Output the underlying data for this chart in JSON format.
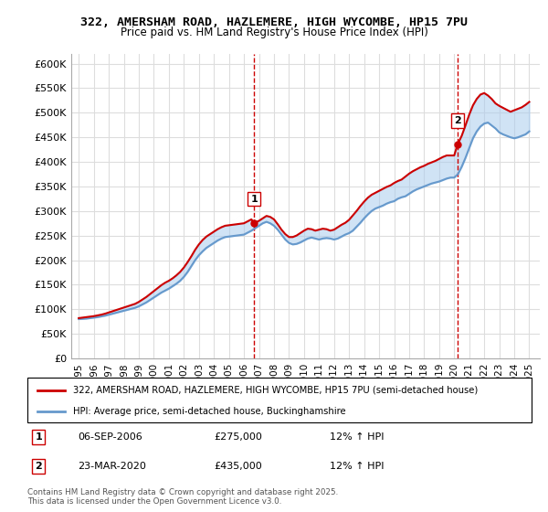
{
  "title": "322, AMERSHAM ROAD, HAZLEMERE, HIGH WYCOMBE, HP15 7PU",
  "subtitle": "Price paid vs. HM Land Registry's House Price Index (HPI)",
  "legend_line1": "322, AMERSHAM ROAD, HAZLEMERE, HIGH WYCOMBE, HP15 7PU (semi-detached house)",
  "legend_line2": "HPI: Average price, semi-detached house, Buckinghamshire",
  "footnote": "Contains HM Land Registry data © Crown copyright and database right 2025.\nThis data is licensed under the Open Government Licence v3.0.",
  "annotation1": {
    "label": "1",
    "date": "06-SEP-2006",
    "price": "£275,000",
    "hpi": "12% ↑ HPI"
  },
  "annotation2": {
    "label": "2",
    "date": "23-MAR-2020",
    "price": "£435,000",
    "hpi": "12% ↑ HPI"
  },
  "ylim": [
    0,
    620000
  ],
  "yticks": [
    0,
    50000,
    100000,
    150000,
    200000,
    250000,
    300000,
    350000,
    400000,
    450000,
    500000,
    550000,
    600000
  ],
  "xlim_start": 1994.5,
  "xlim_end": 2025.7,
  "red_color": "#cc0000",
  "blue_color": "#6699cc",
  "blue_fill": "#aaccee",
  "grid_color": "#dddddd",
  "sale1_x": 2006.67,
  "sale1_y": 275000,
  "sale2_x": 2020.22,
  "sale2_y": 435000,
  "hpi_years": [
    1995.0,
    1995.25,
    1995.5,
    1995.75,
    1996.0,
    1996.25,
    1996.5,
    1996.75,
    1997.0,
    1997.25,
    1997.5,
    1997.75,
    1998.0,
    1998.25,
    1998.5,
    1998.75,
    1999.0,
    1999.25,
    1999.5,
    1999.75,
    2000.0,
    2000.25,
    2000.5,
    2000.75,
    2001.0,
    2001.25,
    2001.5,
    2001.75,
    2002.0,
    2002.25,
    2002.5,
    2002.75,
    2003.0,
    2003.25,
    2003.5,
    2003.75,
    2004.0,
    2004.25,
    2004.5,
    2004.75,
    2005.0,
    2005.25,
    2005.5,
    2005.75,
    2006.0,
    2006.25,
    2006.5,
    2006.75,
    2007.0,
    2007.25,
    2007.5,
    2007.75,
    2008.0,
    2008.25,
    2008.5,
    2008.75,
    2009.0,
    2009.25,
    2009.5,
    2009.75,
    2010.0,
    2010.25,
    2010.5,
    2010.75,
    2011.0,
    2011.25,
    2011.5,
    2011.75,
    2012.0,
    2012.25,
    2012.5,
    2012.75,
    2013.0,
    2013.25,
    2013.5,
    2013.75,
    2014.0,
    2014.25,
    2014.5,
    2014.75,
    2015.0,
    2015.25,
    2015.5,
    2015.75,
    2016.0,
    2016.25,
    2016.5,
    2016.75,
    2017.0,
    2017.25,
    2017.5,
    2017.75,
    2018.0,
    2018.25,
    2018.5,
    2018.75,
    2019.0,
    2019.25,
    2019.5,
    2019.75,
    2020.0,
    2020.25,
    2020.5,
    2020.75,
    2021.0,
    2021.25,
    2021.5,
    2021.75,
    2022.0,
    2022.25,
    2022.5,
    2022.75,
    2023.0,
    2023.25,
    2023.5,
    2023.75,
    2024.0,
    2024.25,
    2024.5,
    2024.75,
    2025.0
  ],
  "hpi_values": [
    80000,
    80500,
    81000,
    82000,
    83000,
    84000,
    85500,
    87000,
    89000,
    91000,
    93000,
    95000,
    97000,
    99000,
    101000,
    103000,
    106000,
    110000,
    114000,
    119000,
    124000,
    129000,
    134000,
    138000,
    142000,
    147000,
    152000,
    158000,
    166000,
    176000,
    188000,
    200000,
    210000,
    218000,
    225000,
    230000,
    235000,
    240000,
    244000,
    247000,
    248000,
    249000,
    250000,
    251000,
    252000,
    256000,
    260000,
    265000,
    270000,
    275000,
    278000,
    275000,
    270000,
    262000,
    252000,
    242000,
    235000,
    232000,
    233000,
    236000,
    240000,
    244000,
    246000,
    244000,
    242000,
    244000,
    245000,
    244000,
    242000,
    244000,
    248000,
    252000,
    255000,
    260000,
    268000,
    276000,
    285000,
    293000,
    300000,
    305000,
    308000,
    311000,
    315000,
    318000,
    320000,
    325000,
    328000,
    330000,
    335000,
    340000,
    344000,
    347000,
    350000,
    353000,
    356000,
    358000,
    360000,
    363000,
    366000,
    368000,
    368000,
    375000,
    390000,
    408000,
    428000,
    448000,
    462000,
    472000,
    478000,
    480000,
    474000,
    468000,
    460000,
    456000,
    453000,
    450000,
    448000,
    450000,
    453000,
    456000,
    462000
  ],
  "red_years": [
    1995.0,
    1995.25,
    1995.5,
    1995.75,
    1996.0,
    1996.25,
    1996.5,
    1996.75,
    1997.0,
    1997.25,
    1997.5,
    1997.75,
    1998.0,
    1998.25,
    1998.5,
    1998.75,
    1999.0,
    1999.25,
    1999.5,
    1999.75,
    2000.0,
    2000.25,
    2000.5,
    2000.75,
    2001.0,
    2001.25,
    2001.5,
    2001.75,
    2002.0,
    2002.25,
    2002.5,
    2002.75,
    2003.0,
    2003.25,
    2003.5,
    2003.75,
    2004.0,
    2004.25,
    2004.5,
    2004.75,
    2005.0,
    2005.25,
    2005.5,
    2005.75,
    2006.0,
    2006.25,
    2006.5,
    2006.67,
    2007.0,
    2007.25,
    2007.5,
    2007.75,
    2008.0,
    2008.25,
    2008.5,
    2008.75,
    2009.0,
    2009.25,
    2009.5,
    2009.75,
    2010.0,
    2010.25,
    2010.5,
    2010.75,
    2011.0,
    2011.25,
    2011.5,
    2011.75,
    2012.0,
    2012.25,
    2012.5,
    2012.75,
    2013.0,
    2013.25,
    2013.5,
    2013.75,
    2014.0,
    2014.25,
    2014.5,
    2014.75,
    2015.0,
    2015.25,
    2015.5,
    2015.75,
    2016.0,
    2016.25,
    2016.5,
    2016.75,
    2017.0,
    2017.25,
    2017.5,
    2017.75,
    2018.0,
    2018.25,
    2018.5,
    2018.75,
    2019.0,
    2019.25,
    2019.5,
    2019.75,
    2020.0,
    2020.22,
    2020.5,
    2020.75,
    2021.0,
    2021.25,
    2021.5,
    2021.75,
    2022.0,
    2022.25,
    2022.5,
    2022.75,
    2023.0,
    2023.25,
    2023.5,
    2023.75,
    2024.0,
    2024.25,
    2024.5,
    2024.75,
    2025.0
  ],
  "red_values": [
    82000,
    83000,
    84000,
    85000,
    86000,
    87500,
    89000,
    91000,
    93500,
    96000,
    98500,
    101000,
    103500,
    106000,
    108500,
    111000,
    115000,
    120000,
    125000,
    131000,
    137000,
    143000,
    149000,
    154000,
    158000,
    163000,
    169000,
    176000,
    185000,
    196000,
    208000,
    221000,
    232000,
    241000,
    248000,
    253000,
    258000,
    263000,
    267000,
    270000,
    271000,
    272000,
    273000,
    274000,
    275000,
    279000,
    283000,
    275000,
    280000,
    285000,
    290000,
    288000,
    283000,
    273000,
    262000,
    253000,
    247000,
    247000,
    250000,
    255000,
    260000,
    264000,
    263000,
    260000,
    262000,
    264000,
    263000,
    260000,
    262000,
    267000,
    272000,
    276000,
    282000,
    291000,
    300000,
    310000,
    319000,
    327000,
    333000,
    337000,
    341000,
    345000,
    349000,
    352000,
    357000,
    361000,
    364000,
    370000,
    376000,
    381000,
    385000,
    389000,
    392000,
    396000,
    399000,
    402000,
    406000,
    410000,
    413000,
    413000,
    413000,
    435000,
    453000,
    474000,
    496000,
    515000,
    528000,
    537000,
    540000,
    535000,
    528000,
    519000,
    514000,
    510000,
    506000,
    502000,
    505000,
    508000,
    511000,
    516000,
    522000
  ]
}
